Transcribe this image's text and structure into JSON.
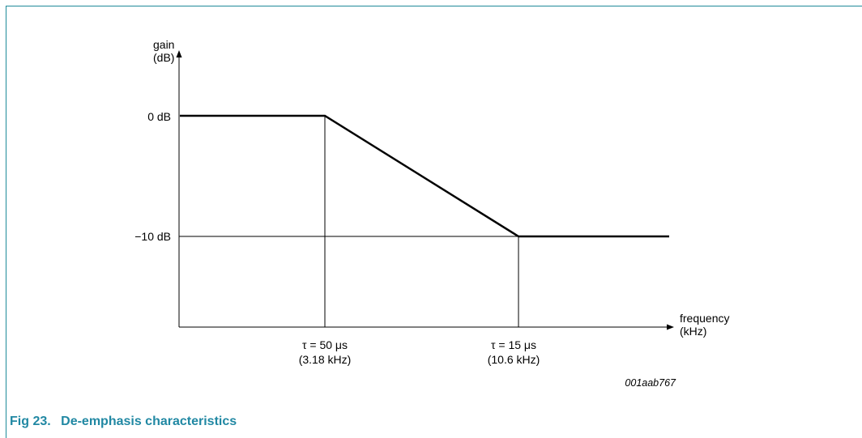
{
  "colors": {
    "frame": "#1f8a99",
    "caption": "#2188a3",
    "line": "#000000"
  },
  "caption": {
    "number": "Fig 23.",
    "title": "De-emphasis characteristics"
  },
  "figure_code": "001aab767",
  "chart_data": {
    "type": "line",
    "ylabel": [
      "gain",
      "(dB)"
    ],
    "xlabel": [
      "frequency",
      "(kHz)"
    ],
    "y_ticks": [
      {
        "value": 0,
        "label": "0 dB"
      },
      {
        "value": -10,
        "label": "−10 dB"
      }
    ],
    "x_ticks": [
      {
        "label": [
          "τ = 50 μs",
          "(3.18 kHz)"
        ]
      },
      {
        "label": [
          "τ = 15 μs",
          "(10.6 kHz)"
        ]
      }
    ],
    "series": [
      {
        "points": [
          {
            "x": "start",
            "y": 0
          },
          {
            "x": 3.18,
            "y": 0
          },
          {
            "x": 10.6,
            "y": -10
          },
          {
            "x": "end",
            "y": -10
          }
        ]
      }
    ]
  }
}
